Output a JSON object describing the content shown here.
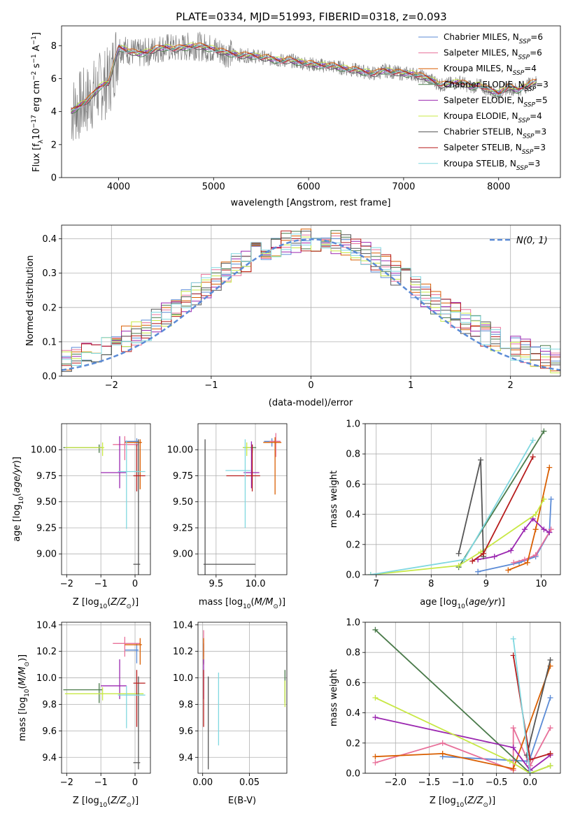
{
  "chart_data": [
    {
      "id": "spectrum",
      "type": "line",
      "title": "PLATE=0334, MJD=51993, FIBERID=0318, z=0.093",
      "xlabel": "wavelength [Angstrom, rest frame]",
      "ylabel": "Flux [f_λ 10^-17 erg cm^-2 s^-1 A^-1]",
      "xlim": [
        3400,
        8650
      ],
      "ylim": [
        0,
        9.2
      ],
      "xticks": [
        4000,
        5000,
        6000,
        7000,
        8000
      ],
      "yticks": [
        0,
        2,
        4,
        6,
        8
      ],
      "grid": false,
      "legend_position": "upper right",
      "data": {
        "x": [
          3500,
          3600,
          3700,
          3800,
          3900,
          4000,
          4100,
          4200,
          4300,
          4400,
          4500,
          4600,
          4700,
          4800,
          4900,
          5000,
          5100,
          5200,
          5300,
          5400,
          5500,
          5600,
          5700,
          5800,
          5900,
          6000,
          6100,
          6200,
          6300,
          6400,
          6500,
          6600,
          6700,
          6800,
          6900,
          7000,
          7100,
          7200,
          7300,
          7400,
          7500,
          7600,
          7700,
          7800,
          7900,
          8000,
          8100,
          8200,
          8300,
          8400
        ],
        "y": [
          4.0,
          4.4,
          4.8,
          5.5,
          5.8,
          7.9,
          7.7,
          7.5,
          7.6,
          7.8,
          7.9,
          7.8,
          7.9,
          8.0,
          7.9,
          7.8,
          7.6,
          7.5,
          7.4,
          7.4,
          7.3,
          7.2,
          7.1,
          7.1,
          7.0,
          6.9,
          6.8,
          6.8,
          6.7,
          6.6,
          6.5,
          6.4,
          6.3,
          6.5,
          6.4,
          6.3,
          6.3,
          6.1,
          5.9,
          5.6,
          5.7,
          5.8,
          5.5,
          5.6,
          5.3,
          5.1,
          5.5,
          5.3,
          5.6,
          5.8
        ]
      },
      "models": [
        {
          "name": "Chabrier MILES, N_SSP=6",
          "color": "#5b8bd6",
          "series_offset": 0.05
        },
        {
          "name": "Salpeter MILES, N_SSP=6",
          "color": "#e8709a",
          "series_offset": -0.05
        },
        {
          "name": "Kroupa MILES, N_SSP=4",
          "color": "#d95f02",
          "series_offset": 0.1
        },
        {
          "name": "Chabrier ELODIE, N_SSP=3",
          "color": "#4a7a4a",
          "series_offset": -0.1
        },
        {
          "name": "Salpeter ELODIE, N_SSP=5",
          "color": "#9b27b0",
          "series_offset": 0.0
        },
        {
          "name": "Kroupa ELODIE, N_SSP=4",
          "color": "#c8e845",
          "series_offset": 0.08
        },
        {
          "name": "Chabrier STELIB, N_SSP=3",
          "color": "#555555",
          "series_offset": -0.08
        },
        {
          "name": "Salpeter STELIB, N_SSP=3",
          "color": "#b71c1c",
          "series_offset": 0.02
        },
        {
          "name": "Kroupa STELIB, N_SSP=3",
          "color": "#80d8e0",
          "series_offset": -0.02
        }
      ]
    },
    {
      "id": "residuals",
      "type": "histogram",
      "xlabel": "(data-model)/error",
      "ylabel": "Normed distribution",
      "xlim": [
        -2.5,
        2.5
      ],
      "ylim": [
        0,
        0.44
      ],
      "xticks": [
        -2,
        -1,
        0,
        1,
        2
      ],
      "yticks": [
        0.0,
        0.1,
        0.2,
        0.3,
        0.4
      ],
      "grid": true,
      "legend": "N(0, 1)",
      "legend_position": "upper right",
      "reference_curve": "gaussian mean 0 sigma 1",
      "bin_width": 0.1,
      "bin_edges_range": [
        -2.5,
        2.5
      ]
    },
    {
      "id": "age_vs_Z",
      "type": "errorbar",
      "xlabel": "Z [log10(Z/Z⊙)]",
      "ylabel": "age [log10(age/yr)]",
      "xlim": [
        -2.15,
        0.45
      ],
      "ylim": [
        8.8,
        10.25
      ],
      "xticks": [
        -2,
        -1,
        0
      ],
      "yticks": [
        9.0,
        9.25,
        9.5,
        9.75,
        10.0
      ],
      "grid": true,
      "points": [
        {
          "model": "Chabrier MILES",
          "x": 0.05,
          "y": 10.08,
          "xerr": [
            0.35,
            0.05
          ],
          "yerr": [
            0.05,
            0.03
          ]
        },
        {
          "model": "Salpeter MILES",
          "x": -0.3,
          "y": 10.05,
          "xerr": [
            0.35,
            0.4
          ],
          "yerr": [
            0.15,
            0.08
          ]
        },
        {
          "model": "Kroupa MILES",
          "x": 0.15,
          "y": 10.07,
          "xerr": [
            0.45,
            0.05
          ],
          "yerr": [
            0.45,
            0.03
          ]
        },
        {
          "model": "Chabrier ELODIE",
          "x": -1.05,
          "y": 10.02,
          "xerr": [
            1.05,
            0.1
          ],
          "yerr": [
            0.05,
            0.03
          ]
        },
        {
          "model": "Salpeter ELODIE",
          "x": -0.45,
          "y": 9.78,
          "xerr": [
            0.55,
            0.2
          ],
          "yerr": [
            0.15,
            0.35
          ]
        },
        {
          "model": "Kroupa ELODIE",
          "x": -0.95,
          "y": 10.02,
          "xerr": [
            1.1,
            0.05
          ],
          "yerr": [
            0.08,
            0.05
          ]
        },
        {
          "model": "Chabrier STELIB",
          "x": 0.1,
          "y": 8.9,
          "xerr": [
            0.15,
            0.05
          ],
          "yerr": [
            0.2,
            1.2
          ]
        },
        {
          "model": "Salpeter STELIB",
          "x": 0.05,
          "y": 9.75,
          "xerr": [
            0.1,
            0.25
          ],
          "yerr": [
            0.15,
            0.3
          ]
        },
        {
          "model": "Kroupa STELIB",
          "x": -0.25,
          "y": 9.79,
          "xerr": [
            0.25,
            0.55
          ],
          "yerr": [
            0.55,
            0.3
          ]
        }
      ]
    },
    {
      "id": "age_vs_mass",
      "type": "errorbar",
      "xlabel": "mass [log10(M/M⊙)]",
      "ylabel": "",
      "xlim": [
        9.27,
        10.4
      ],
      "ylim": [
        8.8,
        10.25
      ],
      "xticks": [
        9.5,
        10.0
      ],
      "yticks": [
        9.0,
        9.25,
        9.5,
        9.75,
        10.0
      ],
      "grid": true,
      "points": [
        {
          "model": "Chabrier MILES",
          "x": 10.21,
          "y": 10.08,
          "xerr": [
            0.1,
            0.1
          ],
          "yerr": [
            0.05,
            0.03
          ]
        },
        {
          "model": "Salpeter MILES",
          "x": 10.26,
          "y": 10.08,
          "xerr": [
            0.08,
            0.06
          ],
          "yerr": [
            0.15,
            0.08
          ]
        },
        {
          "model": "Kroupa MILES",
          "x": 10.25,
          "y": 10.07,
          "xerr": [
            0.15,
            0.08
          ],
          "yerr": [
            0.5,
            0.05
          ]
        },
        {
          "model": "Chabrier ELODIE",
          "x": 9.96,
          "y": 10.02,
          "xerr": [
            0.12,
            0.05
          ],
          "yerr": [
            0.05,
            0.03
          ]
        },
        {
          "model": "Salpeter ELODIE",
          "x": 9.95,
          "y": 9.78,
          "xerr": [
            0.1,
            0.1
          ],
          "yerr": [
            0.15,
            0.3
          ]
        },
        {
          "model": "Kroupa ELODIE",
          "x": 9.89,
          "y": 10.02,
          "xerr": [
            0.05,
            0.05
          ],
          "yerr": [
            0.08,
            0.05
          ]
        },
        {
          "model": "Chabrier STELIB",
          "x": 9.36,
          "y": 8.9,
          "xerr": [
            0.02,
            0.64
          ],
          "yerr": [
            0.2,
            1.2
          ]
        },
        {
          "model": "Salpeter STELIB",
          "x": 9.96,
          "y": 9.75,
          "xerr": [
            0.33,
            0.1
          ],
          "yerr": [
            0.15,
            0.3
          ]
        },
        {
          "model": "Kroupa STELIB",
          "x": 9.87,
          "y": 9.8,
          "xerr": [
            0.25,
            0.07
          ],
          "yerr": [
            0.55,
            0.3
          ]
        }
      ]
    },
    {
      "id": "weight_vs_age",
      "type": "line",
      "xlabel": "age [log10(age/yr)]",
      "ylabel": "mass weight",
      "xlim": [
        6.8,
        10.35
      ],
      "ylim": [
        0,
        1.0
      ],
      "xticks": [
        7,
        8,
        9,
        10
      ],
      "yticks": [
        0.0,
        0.2,
        0.4,
        0.6,
        0.8,
        1.0
      ],
      "grid": true,
      "series": [
        {
          "model": "Chabrier MILES",
          "x": [
            8.85,
            9.6,
            9.9,
            10.15,
            10.18
          ],
          "y": [
            0.02,
            0.08,
            0.12,
            0.28,
            0.5
          ]
        },
        {
          "model": "Salpeter MILES",
          "x": [
            9.5,
            9.7,
            9.9,
            10.18
          ],
          "y": [
            0.08,
            0.1,
            0.13,
            0.3
          ]
        },
        {
          "model": "Kroupa MILES",
          "x": [
            9.4,
            9.75,
            9.9,
            10.15
          ],
          "y": [
            0.03,
            0.08,
            0.3,
            0.71
          ]
        },
        {
          "model": "Chabrier ELODIE",
          "x": [
            8.5,
            10.05
          ],
          "y": [
            0.05,
            0.95
          ]
        },
        {
          "model": "Salpeter ELODIE",
          "x": [
            8.85,
            9.15,
            9.45,
            9.7,
            9.85,
            10.05,
            10.15
          ],
          "y": [
            0.1,
            0.12,
            0.16,
            0.3,
            0.37,
            0.3,
            0.28
          ]
        },
        {
          "model": "Kroupa ELODIE",
          "x": [
            6.9,
            8.5,
            8.9,
            9.9,
            10.05
          ],
          "y": [
            0.0,
            0.06,
            0.15,
            0.4,
            0.5
          ]
        },
        {
          "model": "Chabrier STELIB",
          "x": [
            8.5,
            8.9,
            8.95
          ],
          "y": [
            0.14,
            0.76,
            0.12
          ]
        },
        {
          "model": "Salpeter STELIB",
          "x": [
            8.75,
            8.95,
            9.85
          ],
          "y": [
            0.09,
            0.14,
            0.78
          ]
        },
        {
          "model": "Kroupa STELIB",
          "x": [
            6.9,
            8.6,
            9.85
          ],
          "y": [
            0.0,
            0.1,
            0.89
          ]
        }
      ]
    },
    {
      "id": "mass_vs_Z",
      "type": "errorbar",
      "xlabel": "Z [log10(Z/Z⊙)]",
      "ylabel": "mass [log10(M/M⊙)]",
      "xlim": [
        -2.15,
        0.45
      ],
      "ylim": [
        9.28,
        10.42
      ],
      "xticks": [
        -2,
        -1,
        0
      ],
      "yticks": [
        9.4,
        9.6,
        9.8,
        10.0,
        10.2,
        10.4
      ],
      "grid": true,
      "points": [
        {
          "model": "Chabrier MILES",
          "x": 0.05,
          "y": 10.21,
          "xerr": [
            0.35,
            0.05
          ],
          "yerr": [
            0.1,
            0.05
          ]
        },
        {
          "model": "Salpeter MILES",
          "x": -0.3,
          "y": 10.26,
          "xerr": [
            0.35,
            0.45
          ],
          "yerr": [
            0.1,
            0.05
          ]
        },
        {
          "model": "Kroupa MILES",
          "x": 0.15,
          "y": 10.25,
          "xerr": [
            0.45,
            0.05
          ],
          "yerr": [
            0.15,
            0.05
          ]
        },
        {
          "model": "Chabrier ELODIE",
          "x": -1.05,
          "y": 9.91,
          "xerr": [
            1.05,
            0.1
          ],
          "yerr": [
            0.1,
            0.05
          ]
        },
        {
          "model": "Salpeter ELODIE",
          "x": -0.45,
          "y": 9.94,
          "xerr": [
            0.55,
            0.2
          ],
          "yerr": [
            0.1,
            0.2
          ]
        },
        {
          "model": "Kroupa ELODIE",
          "x": -0.95,
          "y": 9.88,
          "xerr": [
            1.1,
            1.2
          ],
          "yerr": [
            0.05,
            0.05
          ]
        },
        {
          "model": "Chabrier STELIB",
          "x": 0.1,
          "y": 9.36,
          "xerr": [
            0.15,
            0.05
          ],
          "yerr": [
            0.05,
            0.65
          ]
        },
        {
          "model": "Salpeter STELIB",
          "x": 0.05,
          "y": 9.96,
          "xerr": [
            0.1,
            0.25
          ],
          "yerr": [
            0.33,
            0.1
          ]
        },
        {
          "model": "Kroupa STELIB",
          "x": -0.25,
          "y": 9.87,
          "xerr": [
            0.25,
            0.55
          ],
          "yerr": [
            0.25,
            0.07
          ]
        }
      ]
    },
    {
      "id": "mass_vs_ebv",
      "type": "errorbar",
      "xlabel": "E(B-V)",
      "ylabel": "",
      "xlim": [
        -0.005,
        0.09
      ],
      "ylim": [
        9.28,
        10.42
      ],
      "xticks": [
        0.0,
        0.05
      ],
      "yticks": [
        9.4,
        9.6,
        9.8,
        10.0,
        10.2,
        10.4
      ],
      "grid": true,
      "points": [
        {
          "model": "Chabrier MILES",
          "x": 0.001,
          "y": 10.21,
          "yerr": [
            0.1,
            0.05
          ]
        },
        {
          "model": "Salpeter MILES",
          "x": 0.001,
          "y": 10.26,
          "yerr": [
            0.1,
            0.1
          ]
        },
        {
          "model": "Kroupa MILES",
          "x": 0.001,
          "y": 10.25,
          "yerr": [
            0.15,
            0.05
          ]
        },
        {
          "model": "Chabrier ELODIE",
          "x": 0.088,
          "y": 9.91,
          "yerr": [
            0.1,
            0.15
          ]
        },
        {
          "model": "Salpeter ELODIE",
          "x": 0.001,
          "y": 9.94,
          "yerr": [
            0.1,
            0.2
          ]
        },
        {
          "model": "Kroupa ELODIE",
          "x": 0.088,
          "y": 9.88,
          "yerr": [
            0.1,
            0.1
          ]
        },
        {
          "model": "Chabrier STELIB",
          "x": 0.006,
          "y": 9.36,
          "yerr": [
            0.05,
            0.65
          ]
        },
        {
          "model": "Salpeter STELIB",
          "x": 0.001,
          "y": 9.96,
          "yerr": [
            0.33,
            0.1
          ]
        },
        {
          "model": "Kroupa STELIB",
          "x": 0.017,
          "y": 9.87,
          "yerr": [
            0.38,
            0.17
          ]
        }
      ]
    },
    {
      "id": "weight_vs_Z",
      "type": "line",
      "xlabel": "Z [log10(Z/Z⊙)]",
      "ylabel": "mass weight",
      "xlim": [
        -2.45,
        0.45
      ],
      "ylim": [
        0,
        1.0
      ],
      "xticks": [
        -2.0,
        -1.5,
        -1.0,
        -0.5,
        0.0
      ],
      "yticks": [
        0.0,
        0.2,
        0.4,
        0.6,
        0.8,
        1.0
      ],
      "grid": true,
      "series": [
        {
          "model": "Chabrier MILES",
          "x": [
            -1.3,
            -0.05,
            0.0,
            0.3
          ],
          "y": [
            0.11,
            0.08,
            0.1,
            0.5
          ]
        },
        {
          "model": "Salpeter MILES",
          "x": [
            -2.3,
            -1.3,
            -0.25,
            -0.25,
            0.0,
            0.3
          ],
          "y": [
            0.07,
            0.2,
            0.02,
            0.3,
            0.05,
            0.3
          ]
        },
        {
          "model": "Kroupa MILES",
          "x": [
            -2.3,
            -1.3,
            -0.25,
            0.3
          ],
          "y": [
            0.11,
            0.13,
            0.03,
            0.71
          ]
        },
        {
          "model": "Chabrier ELODIE",
          "x": [
            -2.3,
            0.0,
            0.3
          ],
          "y": [
            0.95,
            0.0,
            0.05
          ]
        },
        {
          "model": "Salpeter ELODIE",
          "x": [
            -2.3,
            -0.25,
            0.0,
            0.3
          ],
          "y": [
            0.37,
            0.17,
            0.02,
            0.12
          ]
        },
        {
          "model": "Kroupa ELODIE",
          "x": [
            -2.3,
            -0.3,
            0.0,
            0.3
          ],
          "y": [
            0.5,
            0.08,
            0.0,
            0.05
          ]
        },
        {
          "model": "Chabrier STELIB",
          "x": [
            -0.05,
            0.3
          ],
          "y": [
            0.12,
            0.75
          ]
        },
        {
          "model": "Salpeter STELIB",
          "x": [
            -0.25,
            0.0,
            0.3
          ],
          "y": [
            0.78,
            0.09,
            0.13
          ]
        },
        {
          "model": "Kroupa STELIB",
          "x": [
            -0.25,
            0.0
          ],
          "y": [
            0.89,
            0.0
          ]
        }
      ]
    }
  ]
}
